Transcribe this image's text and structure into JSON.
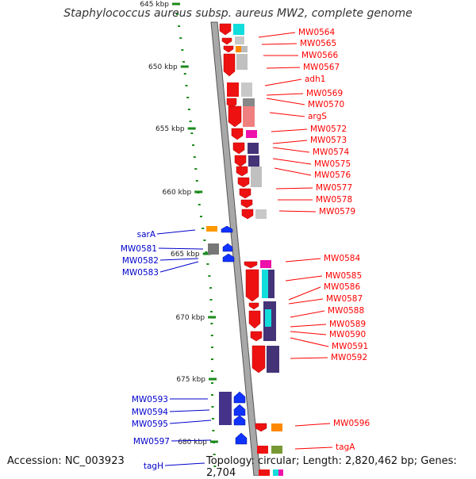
{
  "title": "Staphylococcus aureus subsp. aureus MW2, complete genome",
  "accession": "Accession: NC_003923",
  "topology": "Topology: circular; Length: 2,820,462 bp; Genes: 2,704",
  "colors": {
    "forward_label": "#ff0000",
    "reverse_label": "#0000cc",
    "tick": "#1a8a1a",
    "backbone": "#a0a0a0"
  },
  "scale_ticks": [
    "645 kbp",
    "650 kbp",
    "655 kbp",
    "660 kbp",
    "665 kbp",
    "670 kbp",
    "675 kbp",
    "680 kbp"
  ],
  "forward_genes": [
    "MW0564",
    "MW0565",
    "MW0566",
    "MW0567",
    "adh1",
    "MW0569",
    "MW0570",
    "argS",
    "MW0572",
    "MW0573",
    "MW0574",
    "MW0575",
    "MW0576",
    "MW0577",
    "MW0578",
    "MW0579",
    "MW0584",
    "MW0585",
    "MW0586",
    "MW0587",
    "MW0588",
    "MW0589",
    "MW0590",
    "MW0591",
    "MW0592",
    "MW0596",
    "tagA"
  ],
  "reverse_genes": [
    "sarA",
    "MW0581",
    "MW0582",
    "MW0583",
    "MW0593",
    "MW0594",
    "MW0595",
    "MW0597",
    "tagH"
  ]
}
